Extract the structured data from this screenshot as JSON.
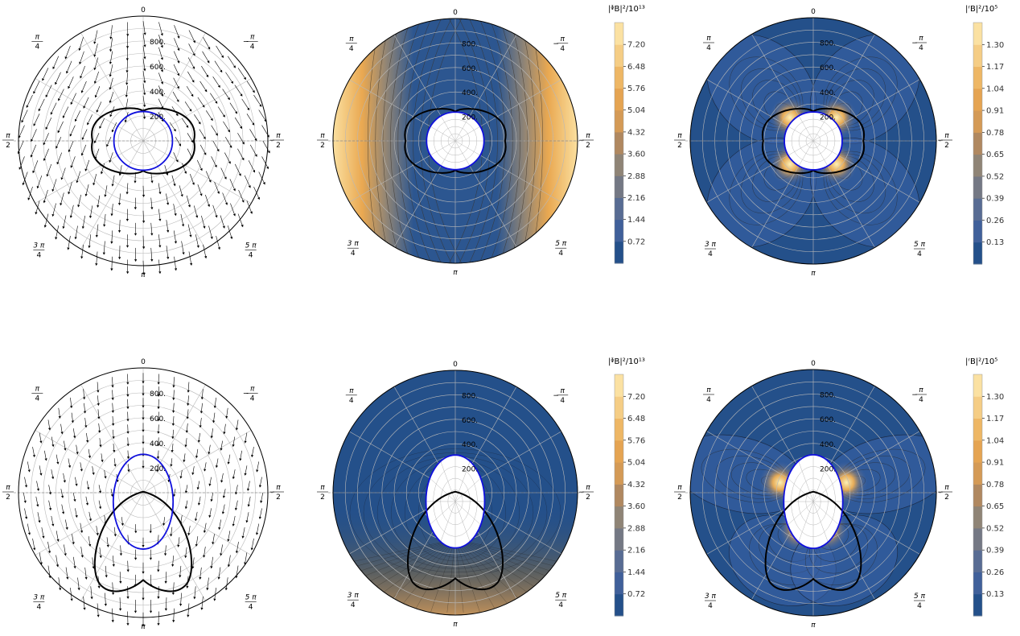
{
  "angle_labels": {
    "top": "0",
    "bottom": "π",
    "pi": "π",
    "two": "2",
    "three": "3",
    "four": "4",
    "five": "5",
    "minus": "−"
  },
  "colormap": {
    "low": "#24508a",
    "mid": "#8f8476",
    "high": "#fdf2bd",
    "stops": [
      "#24508a",
      "#40609a",
      "#586c93",
      "#747884",
      "#8f8476",
      "#b08860",
      "#d49a56",
      "#e5a452",
      "#eeb765",
      "#f5cd85",
      "#fbe1a2",
      "#fdf2bd"
    ]
  },
  "colors": {
    "boundary": "#1010dd",
    "lobe": "#000000",
    "arrow": "#000000",
    "grid": "#b8b8b8"
  },
  "chart_data": [
    {
      "id": "p1",
      "type": "vector",
      "rticks": [
        "200.",
        "400.",
        "600.",
        "800."
      ],
      "rmax": 1000,
      "grid": true,
      "boundary": "circle",
      "lobes": "symmetric",
      "arrows": "radial-outward"
    },
    {
      "id": "p2",
      "type": "contour",
      "field": "phi",
      "rticks": [
        "200.",
        "400.",
        "600.",
        "800."
      ],
      "rmax": 1000,
      "grid": true,
      "boundary": "circle",
      "colorbar_label": "|ᶲB|²/10¹³",
      "colorbar_ticks": [
        "0.72",
        "1.44",
        "2.16",
        "2.88",
        "3.60",
        "4.32",
        "5.04",
        "5.76",
        "6.48",
        "7.20"
      ],
      "colorbar_range": [
        0,
        7.92
      ]
    },
    {
      "id": "p3",
      "type": "contour",
      "field": "r",
      "rticks": [
        "200.",
        "400.",
        "600.",
        "800."
      ],
      "rmax": 1000,
      "grid": true,
      "boundary": "circle",
      "colorbar_label": "|ʳB|²/10⁵",
      "colorbar_ticks": [
        "0.13",
        "0.26",
        "0.39",
        "0.52",
        "0.65",
        "0.78",
        "0.91",
        "1.04",
        "1.17",
        "1.30"
      ],
      "colorbar_range": [
        0,
        1.43
      ]
    },
    {
      "id": "p4",
      "type": "vector",
      "rticks": [
        "200.",
        "400.",
        "600.",
        "800."
      ],
      "rmax": 1000,
      "grid": true,
      "boundary": "ellipse",
      "lobes": "asymmetric",
      "arrows": "downward-converging"
    },
    {
      "id": "p5",
      "type": "contour",
      "field": "phi",
      "rticks": [
        "200.",
        "400.",
        "600.",
        "800."
      ],
      "rmax": 1000,
      "grid": true,
      "boundary": "ellipse",
      "colorbar_label": "|ᶲB|²/10¹³",
      "colorbar_ticks": [
        "0.72",
        "1.44",
        "2.16",
        "2.88",
        "3.60",
        "4.32",
        "5.04",
        "5.76",
        "6.48",
        "7.20"
      ],
      "colorbar_range": [
        0,
        7.92
      ]
    },
    {
      "id": "p6",
      "type": "contour",
      "field": "r",
      "rticks": [
        "200.",
        "400.",
        "600.",
        "800."
      ],
      "rmax": 1000,
      "grid": true,
      "boundary": "ellipse",
      "colorbar_label": "|ʳB|²/10⁵",
      "colorbar_ticks": [
        "0.13",
        "0.26",
        "0.39",
        "0.52",
        "0.65",
        "0.78",
        "0.91",
        "1.04",
        "1.17",
        "1.30"
      ],
      "colorbar_range": [
        0,
        1.43
      ]
    }
  ]
}
